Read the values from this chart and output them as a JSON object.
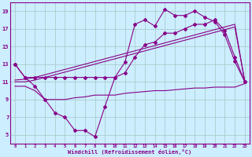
{
  "xlabel": "Windchill (Refroidissement éolien,°C)",
  "bg_color": "#cceeff",
  "grid_color": "#aacccc",
  "line_color": "#880088",
  "xlim": [
    -0.5,
    23.5
  ],
  "ylim": [
    4,
    20
  ],
  "xticks": [
    0,
    1,
    2,
    3,
    4,
    5,
    6,
    7,
    8,
    9,
    10,
    11,
    12,
    13,
    14,
    15,
    16,
    17,
    18,
    19,
    20,
    21,
    22,
    23
  ],
  "yticks": [
    5,
    7,
    9,
    11,
    13,
    15,
    17,
    19
  ],
  "hours": [
    0,
    1,
    2,
    3,
    4,
    5,
    6,
    7,
    8,
    9,
    10,
    11,
    12,
    13,
    14,
    15,
    16,
    17,
    18,
    19,
    20,
    21,
    22,
    23
  ],
  "temp_line": [
    13,
    11.5,
    10.5,
    9.0,
    7.5,
    7.0,
    5.5,
    5.5,
    4.8,
    8.2,
    11.5,
    13.2,
    17.5,
    18.0,
    17.3,
    19.2,
    18.5,
    18.5,
    19.0,
    18.3,
    17.8,
    16.3,
    13.3,
    11.0
  ],
  "windchill_line": [
    13,
    11.5,
    11.5,
    11.5,
    11.5,
    11.5,
    11.5,
    11.5,
    11.5,
    11.5,
    11.5,
    12.0,
    13.8,
    15.2,
    15.5,
    16.5,
    16.5,
    17.0,
    17.5,
    17.5,
    18.0,
    16.8,
    13.8,
    11.0
  ],
  "linear_line1": [
    11.0,
    11.0,
    11.2,
    11.5,
    11.8,
    12.1,
    12.4,
    12.7,
    13.0,
    13.3,
    13.6,
    13.9,
    14.2,
    14.5,
    14.8,
    15.1,
    15.4,
    15.7,
    16.0,
    16.3,
    16.6,
    16.9,
    17.2,
    11.0
  ],
  "linear_line2": [
    11.2,
    11.3,
    11.5,
    11.8,
    12.1,
    12.4,
    12.7,
    13.0,
    13.3,
    13.6,
    13.9,
    14.2,
    14.5,
    14.8,
    15.1,
    15.4,
    15.7,
    16.0,
    16.3,
    16.6,
    16.9,
    17.2,
    17.5,
    11.0
  ],
  "flat_line": [
    10.5,
    10.5,
    10.0,
    9.0,
    9.0,
    9.0,
    9.2,
    9.3,
    9.5,
    9.5,
    9.5,
    9.7,
    9.8,
    9.9,
    10.0,
    10.0,
    10.1,
    10.2,
    10.3,
    10.3,
    10.4,
    10.4,
    10.4,
    10.8
  ]
}
